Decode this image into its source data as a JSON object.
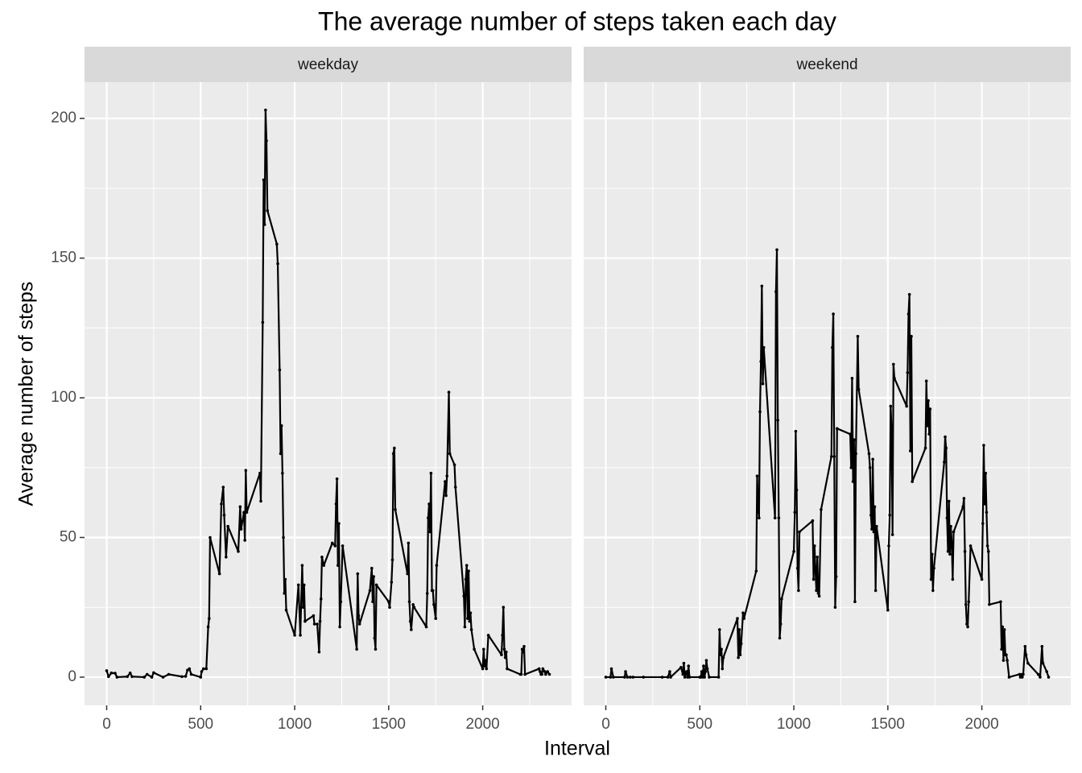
{
  "title": "The average number of steps taken each day",
  "xlabel": "Interval",
  "ylabel": "Average number of steps",
  "chart_data": [
    {
      "type": "line",
      "title": "weekday",
      "color": "#000000",
      "grid": true,
      "markers": true,
      "xlim": [
        -117.75,
        2472.75
      ],
      "ylim": [
        -10.1,
        213.0
      ],
      "xticks": [
        0,
        500,
        1000,
        1500,
        2000
      ],
      "yticks": [
        0,
        50,
        100,
        150,
        200
      ],
      "xminor": [
        250,
        750,
        1250,
        1750,
        2250
      ],
      "yminor": [
        25,
        75,
        125,
        175
      ],
      "x": [
        0,
        10,
        25,
        45,
        55,
        110,
        125,
        135,
        200,
        215,
        240,
        250,
        300,
        330,
        400,
        420,
        430,
        440,
        450,
        500,
        505,
        515,
        530,
        540,
        545,
        550,
        600,
        610,
        620,
        625,
        635,
        645,
        700,
        710,
        715,
        730,
        735,
        740,
        745,
        815,
        820,
        830,
        835,
        840,
        845,
        850,
        855,
        905,
        910,
        920,
        925,
        930,
        935,
        940,
        945,
        950,
        955,
        1000,
        1020,
        1030,
        1040,
        1045,
        1050,
        1055,
        1100,
        1105,
        1120,
        1130,
        1135,
        1140,
        1145,
        1155,
        1200,
        1215,
        1220,
        1225,
        1230,
        1235,
        1240,
        1245,
        1255,
        1330,
        1335,
        1340,
        1345,
        1400,
        1410,
        1415,
        1420,
        1425,
        1430,
        1435,
        1500,
        1505,
        1515,
        1520,
        1525,
        1530,
        1535,
        1600,
        1605,
        1610,
        1615,
        1620,
        1630,
        1635,
        1700,
        1705,
        1710,
        1715,
        1720,
        1725,
        1730,
        1735,
        1740,
        1750,
        1755,
        1800,
        1805,
        1810,
        1820,
        1825,
        1850,
        1855,
        1900,
        1905,
        1910,
        1915,
        1920,
        1925,
        1930,
        1935,
        1940,
        1955,
        2000,
        2005,
        2010,
        2015,
        2020,
        2030,
        2100,
        2105,
        2110,
        2115,
        2120,
        2125,
        2130,
        2200,
        2205,
        2210,
        2215,
        2220,
        2225,
        2300,
        2305,
        2310,
        2315,
        2320,
        2330,
        2335,
        2345,
        2355
      ],
      "values": [
        2.3,
        0.2,
        1.5,
        1.4,
        0,
        0.2,
        1.5,
        0.2,
        0,
        1,
        0,
        1.6,
        0,
        1,
        0.2,
        0.3,
        2.5,
        3,
        1,
        0,
        2,
        3,
        3,
        18,
        21,
        50,
        37,
        62,
        68,
        58,
        43,
        54,
        45,
        61,
        53,
        59,
        49,
        74,
        59,
        73,
        63,
        127,
        178,
        162,
        203,
        192,
        167,
        155,
        148,
        110,
        80,
        90,
        73,
        50,
        30,
        35,
        24,
        15,
        33,
        15,
        40,
        25,
        33,
        20,
        22,
        19,
        19,
        9,
        20,
        28,
        43,
        40,
        48,
        47,
        62,
        71,
        40,
        55,
        18,
        27,
        47,
        10,
        37,
        22,
        19,
        31,
        39,
        27,
        36,
        14,
        10,
        33,
        27,
        25,
        34,
        42,
        80,
        82,
        60,
        37,
        48,
        27,
        20,
        17,
        26,
        25,
        18,
        30,
        57,
        62,
        52,
        73,
        31,
        31,
        26,
        21,
        40,
        70,
        65,
        72,
        102,
        80,
        76,
        68,
        29,
        18,
        35,
        40,
        21,
        38,
        20,
        23,
        17,
        10,
        3,
        10,
        4,
        6,
        3,
        15,
        8,
        15,
        25,
        10,
        7,
        9,
        3,
        1,
        1,
        10,
        9,
        11,
        1,
        3,
        2,
        1,
        1,
        3,
        2,
        1,
        2,
        1
      ]
    },
    {
      "type": "line",
      "title": "weekend",
      "color": "#000000",
      "grid": true,
      "markers": true,
      "xlim": [
        -117.75,
        2472.75
      ],
      "ylim": [
        -10.1,
        213.0
      ],
      "xticks": [
        0,
        500,
        1000,
        1500,
        2000
      ],
      "yticks": [
        0,
        50,
        100,
        150,
        200
      ],
      "xminor": [
        250,
        750,
        1250,
        1750,
        2250
      ],
      "yminor": [
        25,
        75,
        125,
        175
      ],
      "x": [
        0,
        25,
        30,
        40,
        100,
        105,
        115,
        130,
        145,
        200,
        300,
        330,
        340,
        345,
        400,
        410,
        415,
        420,
        430,
        435,
        440,
        445,
        500,
        505,
        510,
        515,
        520,
        525,
        530,
        535,
        540,
        550,
        600,
        605,
        610,
        615,
        620,
        625,
        700,
        705,
        710,
        715,
        720,
        730,
        735,
        800,
        805,
        810,
        815,
        820,
        825,
        830,
        835,
        840,
        900,
        905,
        910,
        915,
        920,
        925,
        930,
        935,
        1000,
        1005,
        1010,
        1015,
        1020,
        1025,
        1030,
        1100,
        1105,
        1110,
        1115,
        1120,
        1125,
        1130,
        1135,
        1145,
        1200,
        1205,
        1210,
        1215,
        1220,
        1225,
        1230,
        1300,
        1305,
        1310,
        1315,
        1320,
        1325,
        1330,
        1340,
        1345,
        1400,
        1405,
        1410,
        1415,
        1420,
        1425,
        1430,
        1435,
        1440,
        1500,
        1505,
        1510,
        1515,
        1520,
        1525,
        1530,
        1535,
        1600,
        1605,
        1610,
        1615,
        1620,
        1625,
        1630,
        1700,
        1705,
        1710,
        1715,
        1720,
        1725,
        1730,
        1735,
        1740,
        1745,
        1800,
        1805,
        1810,
        1815,
        1820,
        1825,
        1830,
        1835,
        1840,
        1845,
        1850,
        1900,
        1905,
        1910,
        1915,
        1920,
        1925,
        1930,
        1940,
        2000,
        2005,
        2010,
        2015,
        2020,
        2025,
        2030,
        2035,
        2040,
        2100,
        2105,
        2110,
        2115,
        2120,
        2125,
        2130,
        2135,
        2145,
        2200,
        2205,
        2210,
        2215,
        2220,
        2230,
        2235,
        2245,
        2300,
        2310,
        2320,
        2325,
        2345,
        2355
      ],
      "values": [
        0,
        0,
        3,
        0,
        0,
        2,
        0,
        0,
        0,
        0,
        0,
        0,
        2,
        0,
        3.5,
        1,
        5,
        0,
        2,
        0,
        4,
        0,
        0,
        0,
        2,
        0,
        4,
        0,
        2,
        6,
        3,
        0,
        0,
        17,
        8,
        10,
        3,
        7,
        21,
        7,
        17,
        8,
        12,
        23,
        21,
        38,
        72,
        61,
        57,
        95,
        113,
        140,
        105,
        118,
        57,
        138,
        153,
        92,
        57,
        14,
        19,
        28,
        45,
        59,
        88,
        67,
        39,
        31,
        52,
        56,
        35,
        47,
        38,
        31,
        43,
        30,
        29,
        60,
        79,
        118,
        130,
        79,
        25,
        36,
        89,
        87,
        75,
        107,
        70,
        85,
        27,
        80,
        122,
        103,
        80,
        75,
        58,
        53,
        78,
        52,
        61,
        31,
        54,
        24,
        47,
        58,
        97,
        88,
        51,
        112,
        107,
        97,
        109,
        130,
        137,
        81,
        122,
        70,
        82,
        106,
        90,
        99,
        87,
        96,
        35,
        44,
        31,
        39,
        77,
        86,
        82,
        57,
        45,
        63,
        44,
        54,
        48,
        35,
        52,
        61,
        64,
        45,
        26,
        19,
        18,
        27,
        47,
        35,
        55,
        83,
        62,
        73,
        59,
        47,
        45,
        26,
        27,
        10,
        18,
        6,
        17,
        8,
        8,
        6,
        0,
        1,
        0,
        1,
        0,
        1,
        11,
        8,
        5,
        1,
        0,
        11,
        5,
        2,
        0
      ]
    }
  ]
}
